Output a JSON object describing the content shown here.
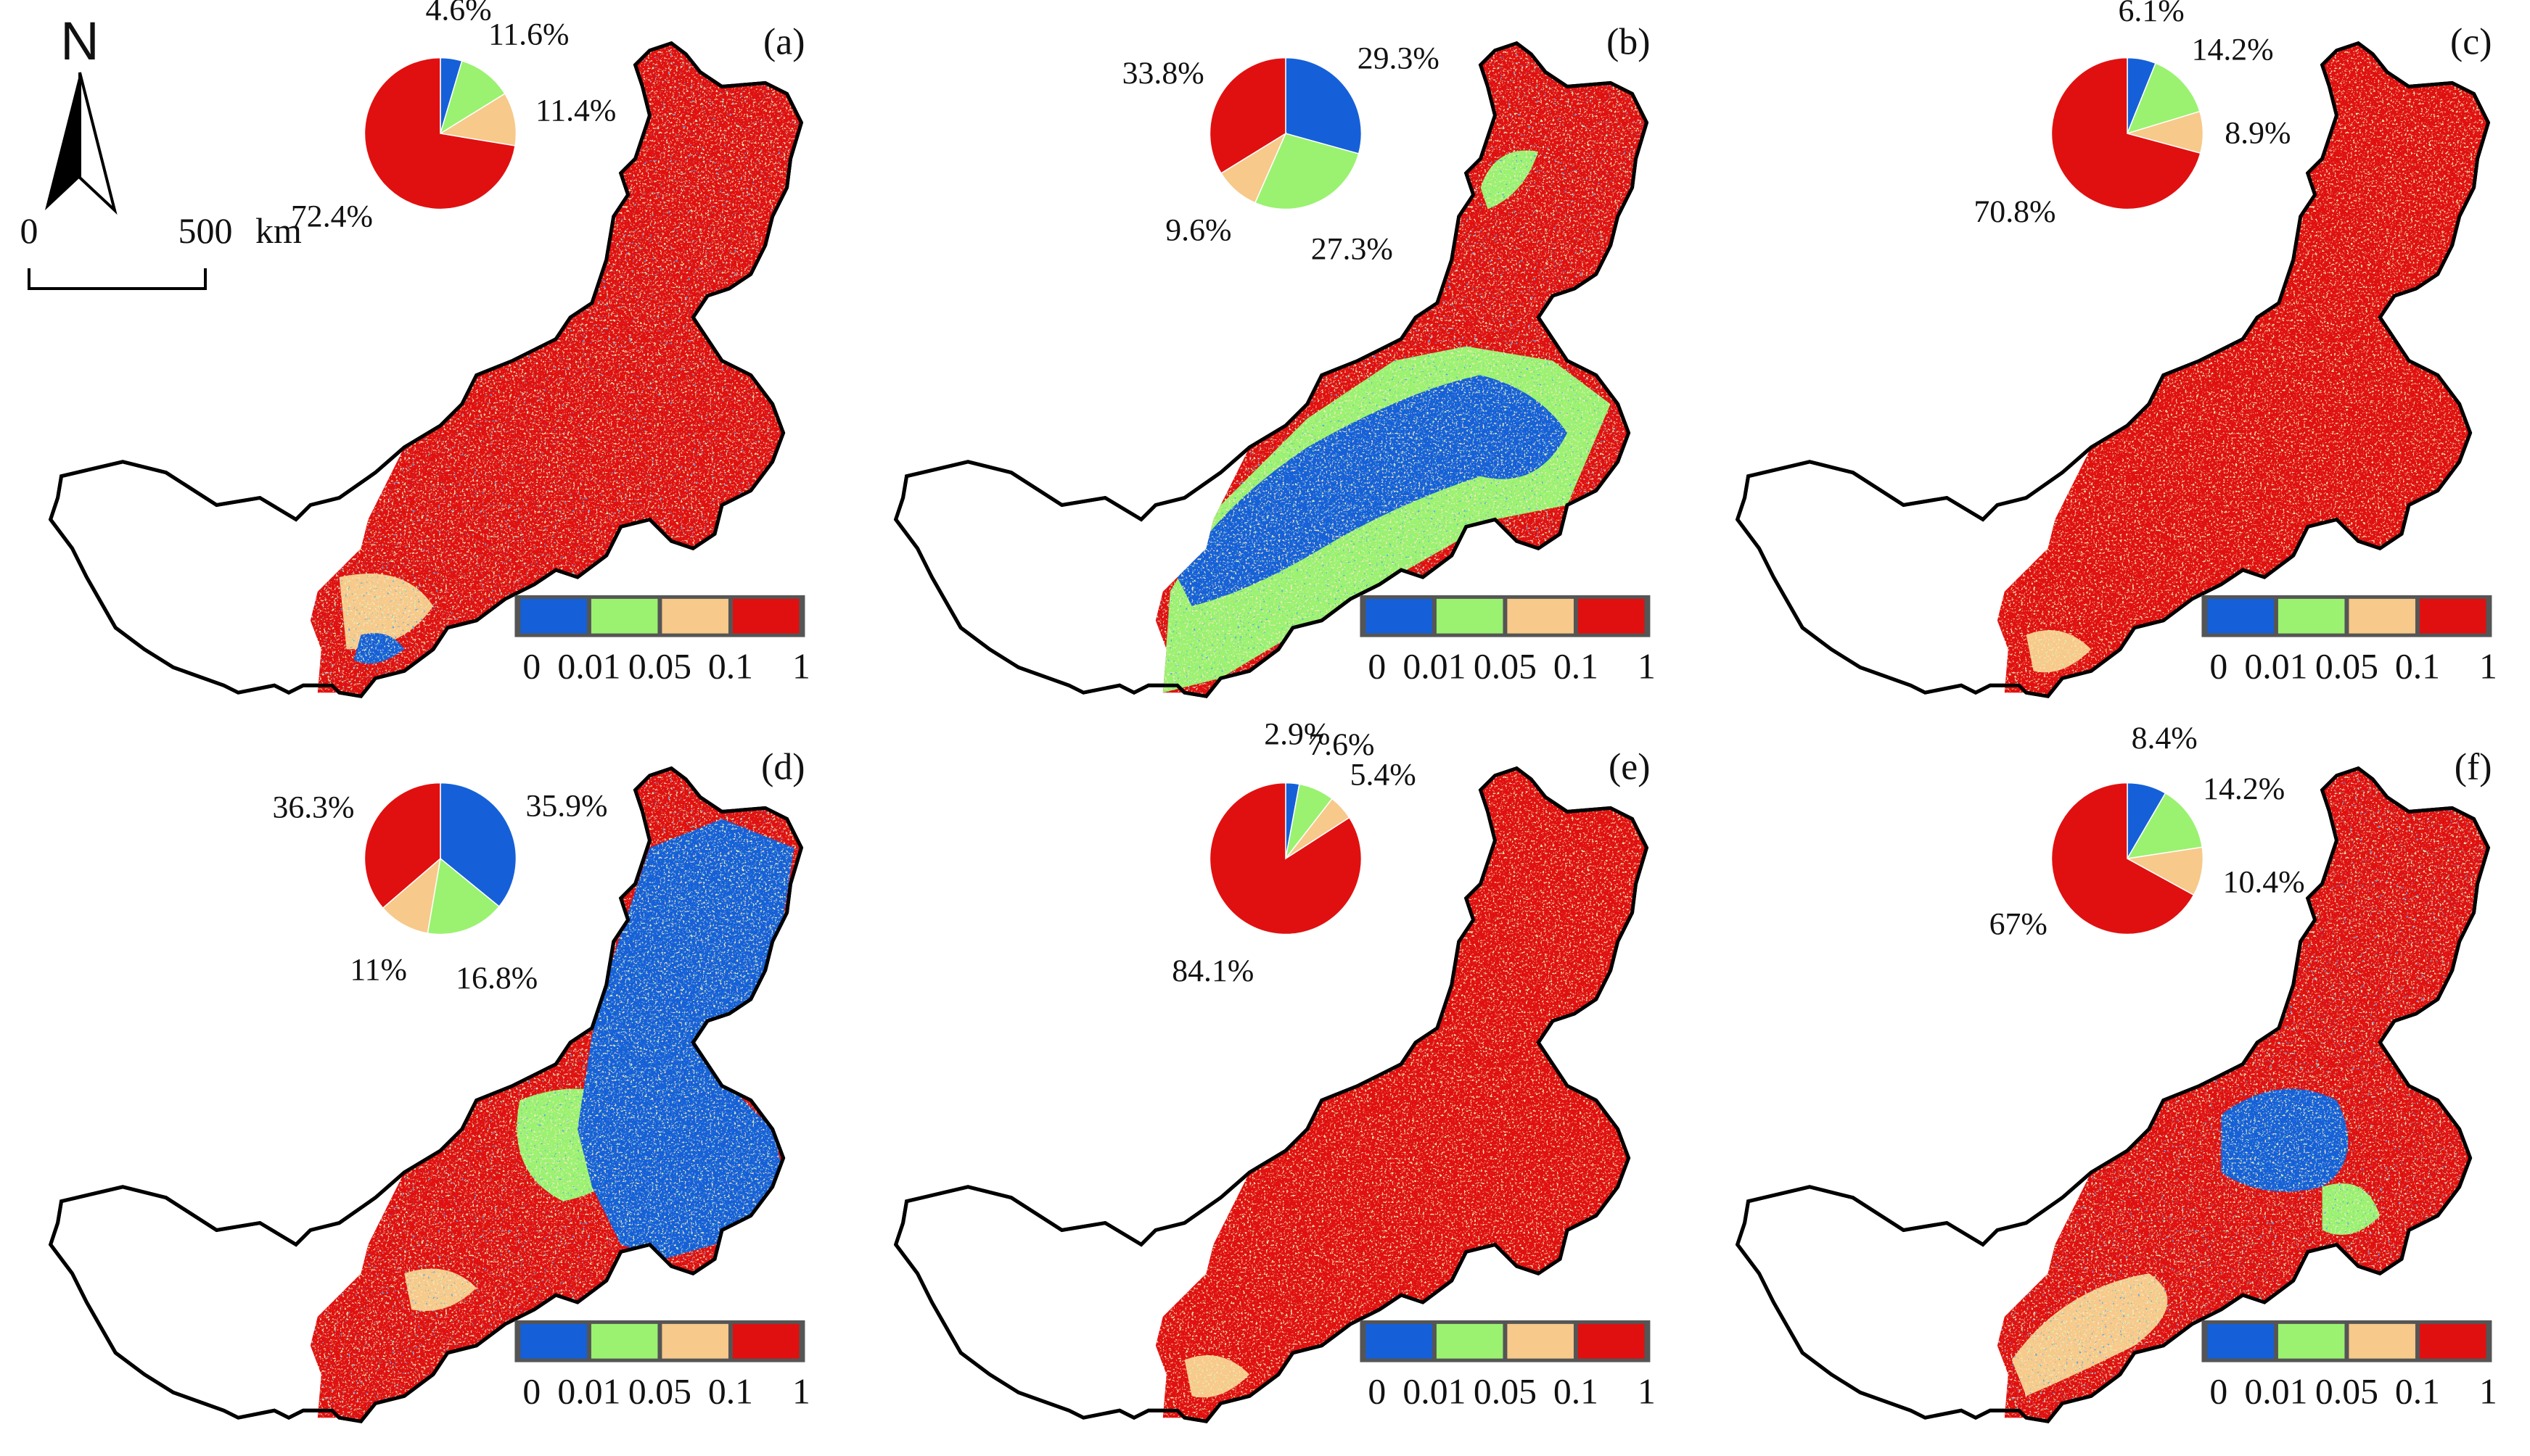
{
  "colors": {
    "class_0_0.01": "#1560d8",
    "class_0.01_0.05": "#9af270",
    "class_0.05_0.1": "#f7c98a",
    "class_0.1_1": "#e01010",
    "outline": "#000000",
    "legend_frame": "#555555"
  },
  "north_arrow": {
    "letter": "N"
  },
  "scale_bar": {
    "start": "0",
    "end": "500",
    "unit": "km"
  },
  "legend": {
    "ticks": [
      "0",
      "0.01",
      "0.05",
      "0.1",
      "1"
    ]
  },
  "panels": [
    {
      "id": "a",
      "label": "(a)",
      "dominant": "red-mix",
      "pie": [
        {
          "cls": "class_0_0.01",
          "value": 4.6,
          "label": "4.6%"
        },
        {
          "cls": "class_0.01_0.05",
          "value": 11.6,
          "label": "11.6%"
        },
        {
          "cls": "class_0.05_0.1",
          "value": 11.4,
          "label": "11.4%"
        },
        {
          "cls": "class_0.1_1",
          "value": 72.4,
          "label": "72.4%"
        }
      ]
    },
    {
      "id": "b",
      "label": "(b)",
      "dominant": "blue-west",
      "pie": [
        {
          "cls": "class_0_0.01",
          "value": 29.3,
          "label": "29.3%"
        },
        {
          "cls": "class_0.01_0.05",
          "value": 27.3,
          "label": "27.3%"
        },
        {
          "cls": "class_0.05_0.1",
          "value": 9.6,
          "label": "9.6%"
        },
        {
          "cls": "class_0.1_1",
          "value": 33.8,
          "label": "33.8%"
        }
      ]
    },
    {
      "id": "c",
      "label": "(c)",
      "dominant": "red-solid",
      "pie": [
        {
          "cls": "class_0_0.01",
          "value": 6.1,
          "label": "6.1%"
        },
        {
          "cls": "class_0.01_0.05",
          "value": 14.2,
          "label": "14.2%"
        },
        {
          "cls": "class_0.05_0.1",
          "value": 8.9,
          "label": "8.9%"
        },
        {
          "cls": "class_0.1_1",
          "value": 70.8,
          "label": "70.8%"
        }
      ]
    },
    {
      "id": "d",
      "label": "(d)",
      "dominant": "blue-east",
      "pie": [
        {
          "cls": "class_0_0.01",
          "value": 35.9,
          "label": "35.9%"
        },
        {
          "cls": "class_0.01_0.05",
          "value": 16.8,
          "label": "16.8%"
        },
        {
          "cls": "class_0.05_0.1",
          "value": 11,
          "label": "11%"
        },
        {
          "cls": "class_0.1_1",
          "value": 36.3,
          "label": "36.3%"
        }
      ]
    },
    {
      "id": "e",
      "label": "(e)",
      "dominant": "red-solid",
      "pie": [
        {
          "cls": "class_0_0.01",
          "value": 2.9,
          "label": "2.9%"
        },
        {
          "cls": "class_0.01_0.05",
          "value": 7.6,
          "label": "7.6%"
        },
        {
          "cls": "class_0.05_0.1",
          "value": 5.4,
          "label": "5.4%"
        },
        {
          "cls": "class_0.1_1",
          "value": 84.1,
          "label": "84.1%"
        }
      ]
    },
    {
      "id": "f",
      "label": "(f)",
      "dominant": "blue-central",
      "pie": [
        {
          "cls": "class_0_0.01",
          "value": 8.4,
          "label": "8.4%"
        },
        {
          "cls": "class_0.01_0.05",
          "value": 14.2,
          "label": "14.2%"
        },
        {
          "cls": "class_0.05_0.1",
          "value": 10.4,
          "label": "10.4%"
        },
        {
          "cls": "class_0.1_1",
          "value": 67,
          "label": "67%"
        }
      ]
    }
  ]
}
